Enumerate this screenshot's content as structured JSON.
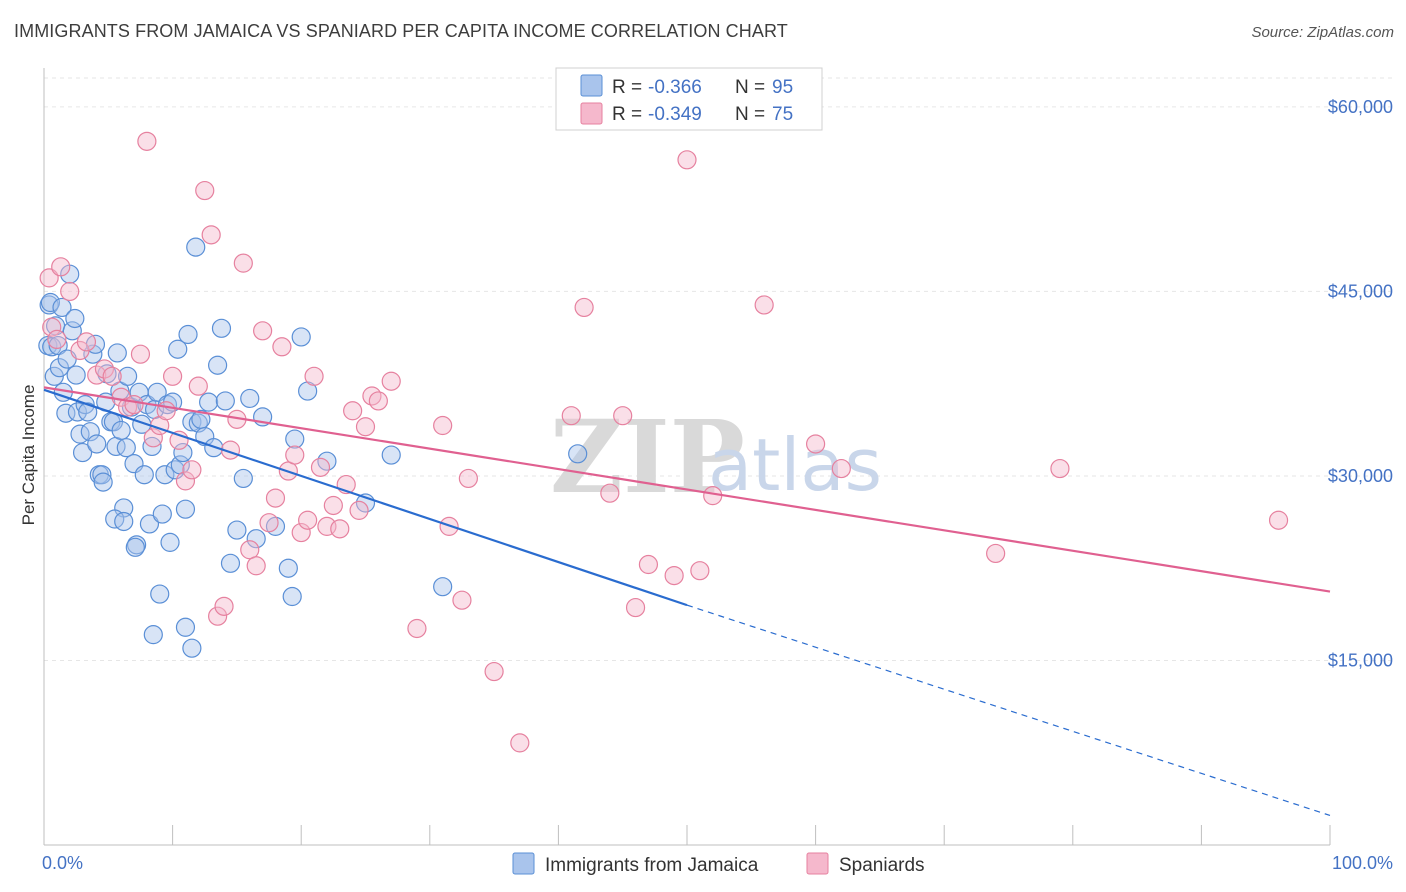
{
  "title": "IMMIGRANTS FROM JAMAICA VS SPANIARD PER CAPITA INCOME CORRELATION CHART",
  "source": "Source: ZipAtlas.com",
  "watermark": {
    "zip": "ZIP",
    "atlas": "atlas"
  },
  "colors": {
    "blue_fill": "#a9c4ec",
    "blue_stroke": "#5a8fd6",
    "blue_line": "#2a6ccf",
    "pink_fill": "#f5b8cc",
    "pink_stroke": "#e6819f",
    "pink_line": "#e06090",
    "tick_text": "#4472c4"
  },
  "legend": {
    "rows": [
      {
        "r_label": "R =",
        "r_value": "-0.366",
        "n_label": "N =",
        "n_value": "95",
        "color": "blue"
      },
      {
        "r_label": "R =",
        "r_value": "-0.349",
        "n_label": "N =",
        "n_value": "75",
        "color": "pink"
      }
    ]
  },
  "bottom_legend": [
    {
      "label": "Immigrants from Jamaica",
      "color": "blue"
    },
    {
      "label": "Spaniards",
      "color": "pink"
    }
  ],
  "chart_data": {
    "type": "scatter",
    "xlabel": "",
    "ylabel": "Per Capita Income",
    "xlim": [
      0,
      100
    ],
    "ylim": [
      0,
      63000
    ],
    "x_tick_labels": [
      "0.0%",
      "100.0%"
    ],
    "y_ticks": [
      15000,
      30000,
      45000,
      60000
    ],
    "y_tick_labels": [
      "$15,000",
      "$30,000",
      "$45,000",
      "$60,000"
    ],
    "grid": true,
    "legend_position": "top-center",
    "series": [
      {
        "name": "Immigrants from Jamaica",
        "color": "blue",
        "trend": {
          "x0": 0,
          "y0": 37000,
          "x1": 50,
          "y1": 19500,
          "dashed_to_x": 100,
          "dashed_to_y": 2400
        },
        "points": [
          [
            0.3,
            40600
          ],
          [
            0.4,
            43900
          ],
          [
            0.5,
            44100
          ],
          [
            0.6,
            40500
          ],
          [
            0.8,
            38100
          ],
          [
            0.9,
            42200
          ],
          [
            1.1,
            40600
          ],
          [
            1.2,
            38800
          ],
          [
            1.4,
            43700
          ],
          [
            1.5,
            36800
          ],
          [
            1.7,
            35100
          ],
          [
            1.8,
            39500
          ],
          [
            2,
            46400
          ],
          [
            2.2,
            41800
          ],
          [
            2.4,
            42800
          ],
          [
            2.5,
            38200
          ],
          [
            2.6,
            35200
          ],
          [
            2.8,
            33400
          ],
          [
            3,
            31900
          ],
          [
            3.2,
            35800
          ],
          [
            3.4,
            35200
          ],
          [
            3.6,
            33600
          ],
          [
            3.8,
            39900
          ],
          [
            4,
            40700
          ],
          [
            4.1,
            32600
          ],
          [
            4.3,
            30100
          ],
          [
            4.5,
            30100
          ],
          [
            4.6,
            29500
          ],
          [
            4.8,
            36000
          ],
          [
            4.9,
            38300
          ],
          [
            5.2,
            34400
          ],
          [
            5.4,
            34400
          ],
          [
            5.6,
            32400
          ],
          [
            5.7,
            40000
          ],
          [
            5.9,
            36900
          ],
          [
            6,
            33700
          ],
          [
            6.2,
            27400
          ],
          [
            6.4,
            32300
          ],
          [
            6.5,
            38100
          ],
          [
            6.8,
            35600
          ],
          [
            7,
            31000
          ],
          [
            7.2,
            24400
          ],
          [
            7.4,
            36800
          ],
          [
            7.6,
            34200
          ],
          [
            7.8,
            30100
          ],
          [
            8,
            35800
          ],
          [
            8.2,
            26100
          ],
          [
            8.4,
            32400
          ],
          [
            8.6,
            35400
          ],
          [
            8.8,
            36800
          ],
          [
            9,
            20400
          ],
          [
            9.2,
            26900
          ],
          [
            9.4,
            30100
          ],
          [
            9.6,
            35800
          ],
          [
            9.8,
            24600
          ],
          [
            10,
            36000
          ],
          [
            10.2,
            30500
          ],
          [
            10.4,
            40300
          ],
          [
            10.6,
            30900
          ],
          [
            10.8,
            31900
          ],
          [
            11,
            27300
          ],
          [
            11.2,
            41500
          ],
          [
            11.5,
            34400
          ],
          [
            11.8,
            48600
          ],
          [
            12,
            34300
          ],
          [
            12.2,
            34600
          ],
          [
            12.5,
            33200
          ],
          [
            12.8,
            36000
          ],
          [
            13.2,
            32300
          ],
          [
            13.5,
            39000
          ],
          [
            13.8,
            42000
          ],
          [
            14.1,
            36100
          ],
          [
            14.5,
            22900
          ],
          [
            15,
            25600
          ],
          [
            15.5,
            29800
          ],
          [
            16,
            36300
          ],
          [
            16.5,
            24900
          ],
          [
            17,
            34800
          ],
          [
            18,
            25900
          ],
          [
            19,
            22500
          ],
          [
            19.5,
            33000
          ],
          [
            20,
            41300
          ],
          [
            20.5,
            36900
          ],
          [
            22,
            31200
          ],
          [
            25,
            27800
          ],
          [
            27,
            31700
          ],
          [
            31,
            21000
          ],
          [
            41.5,
            31800
          ],
          [
            8.5,
            17100
          ],
          [
            11,
            17700
          ],
          [
            11.5,
            16000
          ],
          [
            19.3,
            20200
          ],
          [
            5.5,
            26500
          ],
          [
            6.2,
            26300
          ],
          [
            7.1,
            24200
          ]
        ]
      },
      {
        "name": "Spaniards",
        "color": "pink",
        "trend": {
          "x0": 0,
          "y0": 37200,
          "x1": 100,
          "y1": 20600
        },
        "points": [
          [
            0.4,
            46100
          ],
          [
            0.6,
            42100
          ],
          [
            1,
            41100
          ],
          [
            1.3,
            47000
          ],
          [
            2,
            45000
          ],
          [
            2.8,
            40200
          ],
          [
            3.3,
            40900
          ],
          [
            4.1,
            38200
          ],
          [
            4.7,
            38700
          ],
          [
            5.3,
            38100
          ],
          [
            6,
            36400
          ],
          [
            6.5,
            35600
          ],
          [
            7,
            35800
          ],
          [
            7.5,
            39900
          ],
          [
            8,
            57200
          ],
          [
            8.5,
            33100
          ],
          [
            9,
            34100
          ],
          [
            9.5,
            35300
          ],
          [
            10,
            38100
          ],
          [
            10.5,
            32900
          ],
          [
            11,
            29600
          ],
          [
            11.5,
            30500
          ],
          [
            12,
            37300
          ],
          [
            12.5,
            53200
          ],
          [
            13,
            49600
          ],
          [
            13.5,
            18600
          ],
          [
            14,
            19400
          ],
          [
            14.5,
            32100
          ],
          [
            15,
            34600
          ],
          [
            15.5,
            47300
          ],
          [
            16,
            24000
          ],
          [
            16.5,
            22700
          ],
          [
            17,
            41800
          ],
          [
            17.5,
            26200
          ],
          [
            18,
            28200
          ],
          [
            18.5,
            40500
          ],
          [
            19,
            30400
          ],
          [
            19.5,
            31700
          ],
          [
            20,
            25400
          ],
          [
            20.5,
            26400
          ],
          [
            21,
            38100
          ],
          [
            21.5,
            30700
          ],
          [
            22,
            25900
          ],
          [
            22.5,
            27600
          ],
          [
            23,
            25700
          ],
          [
            23.5,
            29300
          ],
          [
            24,
            35300
          ],
          [
            24.5,
            27200
          ],
          [
            25,
            34000
          ],
          [
            25.5,
            36500
          ],
          [
            26,
            36100
          ],
          [
            27,
            37700
          ],
          [
            29,
            17600
          ],
          [
            31,
            34100
          ],
          [
            31.5,
            25900
          ],
          [
            32.5,
            19900
          ],
          [
            33,
            29800
          ],
          [
            35,
            14100
          ],
          [
            37,
            8300
          ],
          [
            41,
            34900
          ],
          [
            42,
            43700
          ],
          [
            44,
            28600
          ],
          [
            45,
            34900
          ],
          [
            46,
            19300
          ],
          [
            47,
            22800
          ],
          [
            49,
            21900
          ],
          [
            50,
            55700
          ],
          [
            51,
            22300
          ],
          [
            52,
            28400
          ],
          [
            56,
            43900
          ],
          [
            60,
            32600
          ],
          [
            62,
            30600
          ],
          [
            74,
            23700
          ],
          [
            79,
            30600
          ],
          [
            96,
            26400
          ]
        ]
      }
    ]
  }
}
